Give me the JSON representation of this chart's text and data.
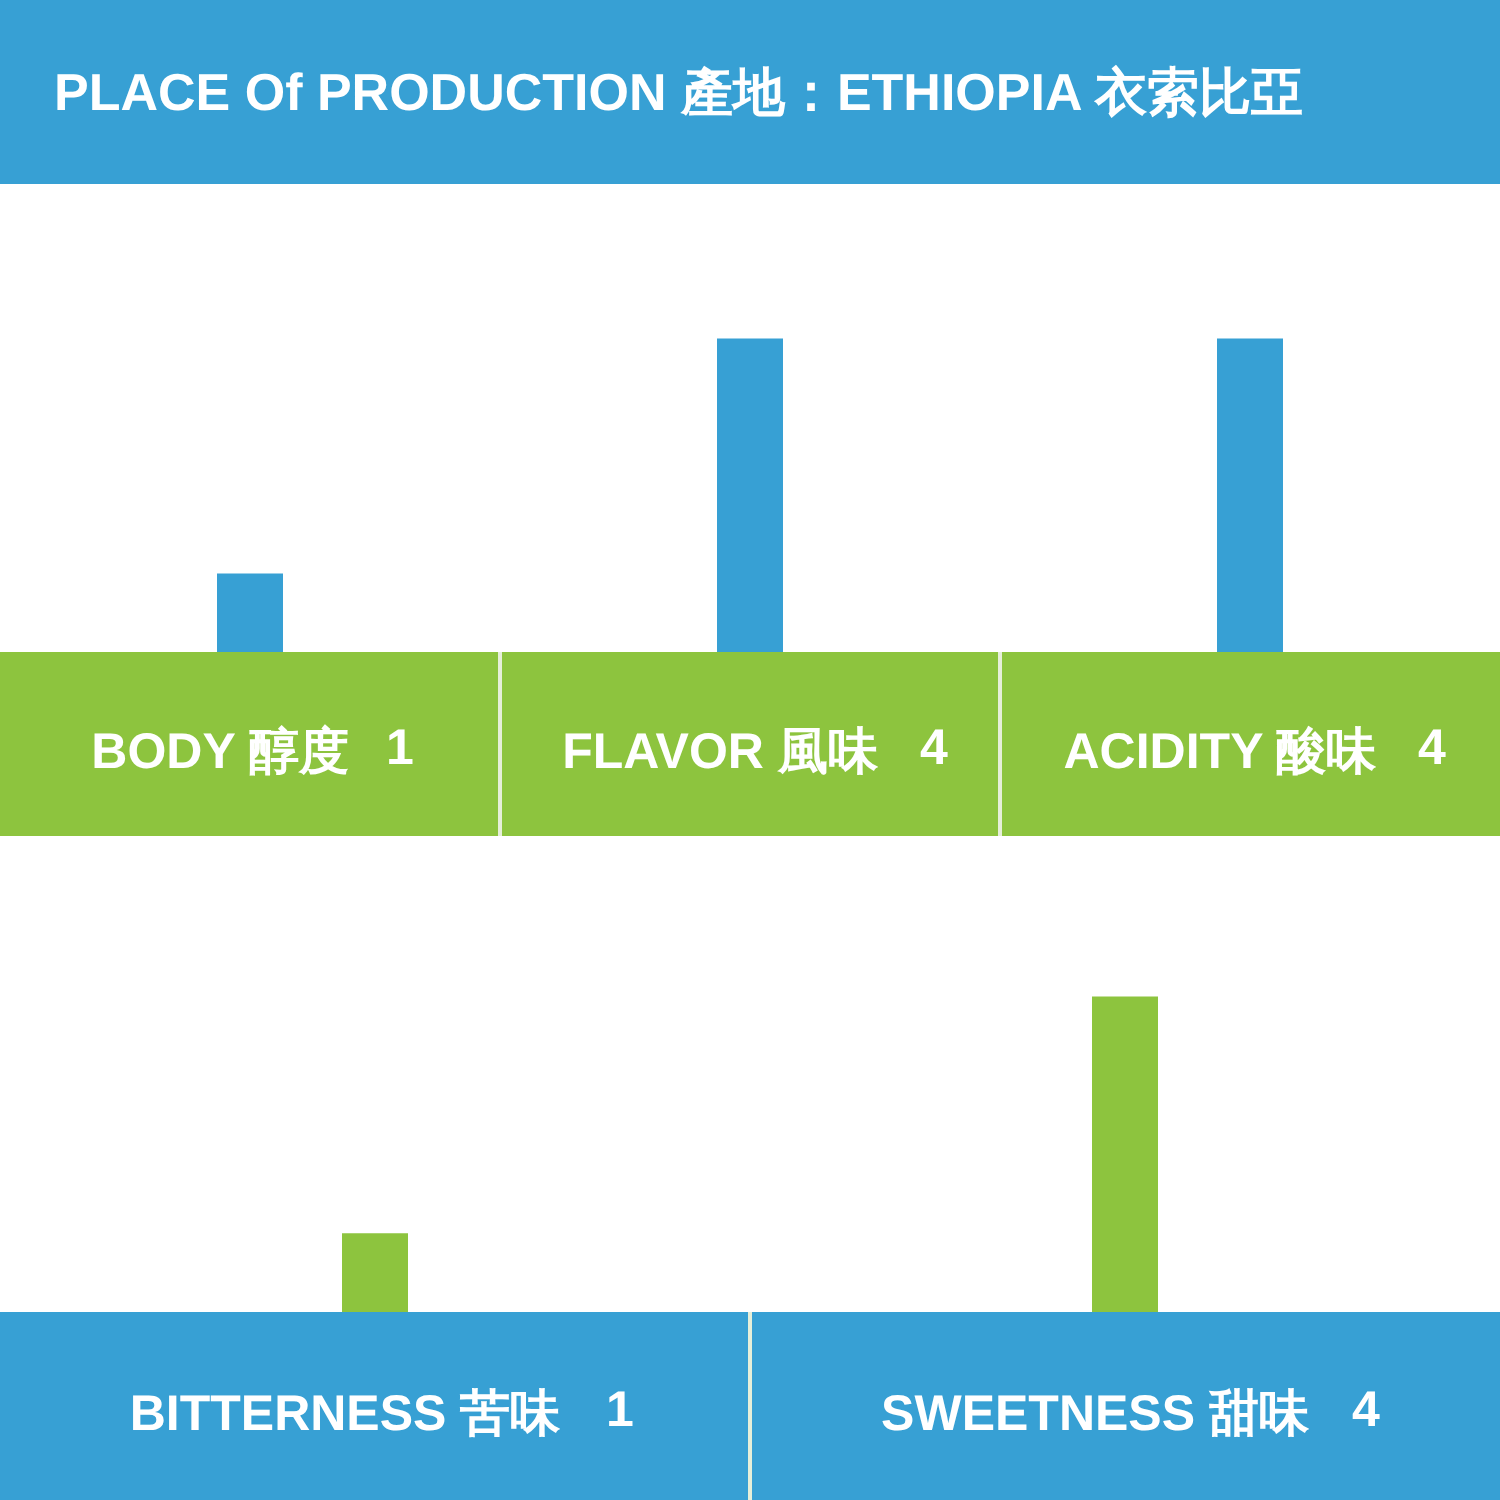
{
  "chart_data": [
    {
      "type": "bar",
      "title": "PLACE Of PRODUCTION 產地：ETHIOPIA 衣索比亞",
      "categories": [
        "BODY 醇度",
        "FLAVOR 風味",
        "ACIDITY 酸味"
      ],
      "values": [
        1,
        4,
        4
      ],
      "color": "#37a0d4",
      "data_labels": true,
      "tick_labels": "x"
    },
    {
      "type": "bar",
      "categories": [
        "BITTERNESS 苦味",
        "SWEETNESS 甜味"
      ],
      "values": [
        1,
        4
      ],
      "color": "#8dc43e",
      "data_labels": true,
      "tick_labels": "x"
    }
  ]
}
